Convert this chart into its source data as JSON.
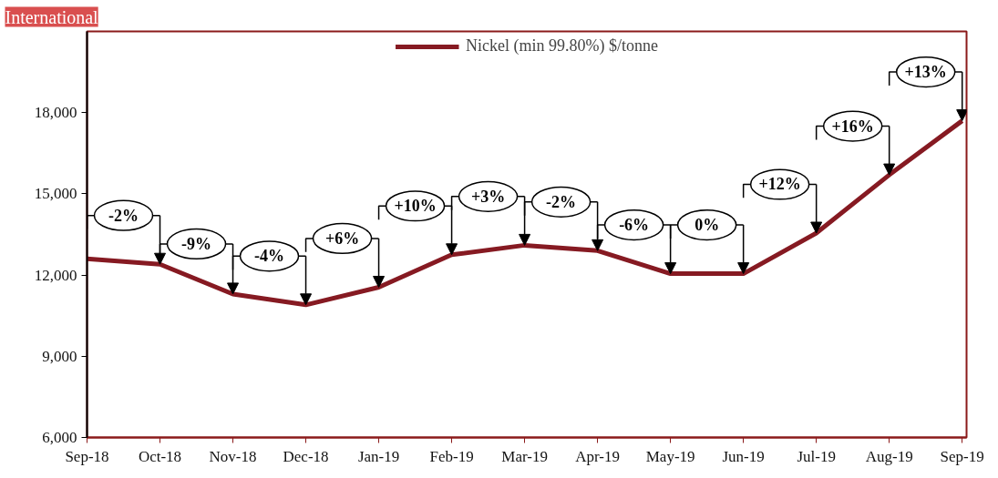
{
  "chart_data": {
    "type": "line",
    "title": "International",
    "categories": [
      "Sep-18",
      "Oct-18",
      "Nov-18",
      "Dec-18",
      "Jan-19",
      "Feb-19",
      "Mar-19",
      "Apr-19",
      "May-19",
      "Jun-19",
      "Jul-19",
      "Aug-19",
      "Sep-19"
    ],
    "series": [
      {
        "name": "Nickel (min 99.80%) $/tonne",
        "color": "#861a22",
        "values": [
          12600,
          12400,
          11300,
          10900,
          11550,
          12750,
          13100,
          12900,
          12050,
          12050,
          13550,
          15700,
          17700
        ]
      }
    ],
    "ylim": [
      6000,
      21000
    ],
    "yticks": [
      {
        "value": 6000,
        "label": "6,000"
      },
      {
        "value": 9000,
        "label": "9,000"
      },
      {
        "value": 12000,
        "label": "12,000"
      },
      {
        "value": 15000,
        "label": "15,000"
      },
      {
        "value": 18000,
        "label": "18,000"
      }
    ],
    "grid": false,
    "legend": "top",
    "marker": "none",
    "line_style": "solid",
    "annotations": [
      {
        "text": "-2%",
        "x": "Oct-18",
        "y": 12400
      },
      {
        "text": "-9%",
        "x": "Nov-18",
        "y": 11300
      },
      {
        "text": "-4%",
        "x": "Dec-18",
        "y": 10900
      },
      {
        "text": "+6%",
        "x": "Jan-19",
        "y": 11550
      },
      {
        "text": "+10%",
        "x": "Feb-19",
        "y": 12750
      },
      {
        "text": "+3%",
        "x": "Mar-19",
        "y": 13100
      },
      {
        "text": "-2%",
        "x": "Apr-19",
        "y": 12900
      },
      {
        "text": "-6%",
        "x": "May-19",
        "y": 12050
      },
      {
        "text": "0%",
        "x": "Jun-19",
        "y": 12050
      },
      {
        "text": "+12%",
        "x": "Jul-19",
        "y": 13550
      },
      {
        "text": "+16%",
        "x": "Aug-19",
        "y": 15700
      },
      {
        "text": "+13%",
        "x": "Sep-19",
        "y": 17700
      }
    ]
  }
}
